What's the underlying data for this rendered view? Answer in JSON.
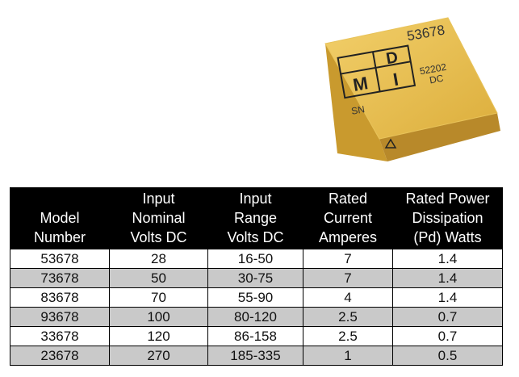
{
  "product_image": {
    "part_number": "53678",
    "lot_code": "52202",
    "type_code": "DC",
    "serial_label": "SN",
    "logo": [
      "M",
      "D",
      "I"
    ]
  },
  "table": {
    "header": [
      [
        "Model",
        "Number"
      ],
      [
        "Input",
        "Nominal",
        "Volts DC"
      ],
      [
        "Input",
        "Range",
        "Volts DC"
      ],
      [
        "Rated",
        "Current",
        "Amperes"
      ],
      [
        "Rated Power",
        "Dissipation",
        "(Pd) Watts"
      ]
    ],
    "rows": [
      [
        "53678",
        "28",
        "16-50",
        "7",
        "1.4"
      ],
      [
        "73678",
        "50",
        "30-75",
        "7",
        "1.4"
      ],
      [
        "83678",
        "70",
        "55-90",
        "4",
        "1.4"
      ],
      [
        "93678",
        "100",
        "80-120",
        "2.5",
        "0.7"
      ],
      [
        "33678",
        "120",
        "86-158",
        "2.5",
        "0.7"
      ],
      [
        "23678",
        "270",
        "185-335",
        "1",
        "0.5"
      ]
    ]
  }
}
